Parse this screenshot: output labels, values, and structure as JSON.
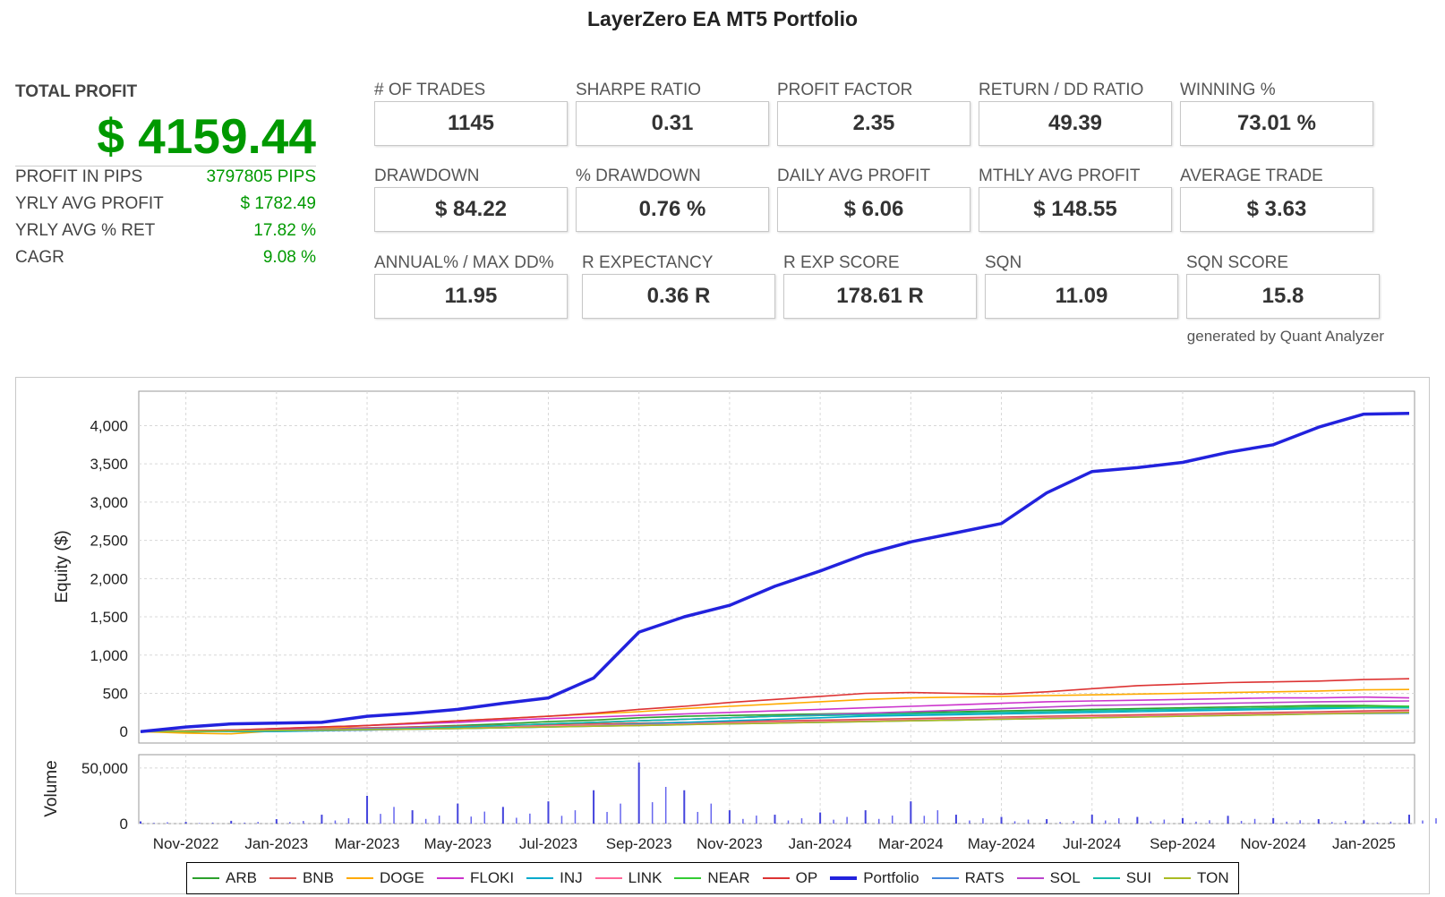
{
  "title": "LayerZero EA MT5 Portfolio",
  "total_profit": {
    "label": "TOTAL PROFIT",
    "value": "$ 4159.44"
  },
  "summary": [
    {
      "label": "PROFIT IN PIPS",
      "value": "3797805 PIPS"
    },
    {
      "label": "YRLY AVG PROFIT",
      "value": "$ 1782.49"
    },
    {
      "label": "YRLY AVG % RET",
      "value": "17.82 %"
    },
    {
      "label": "CAGR",
      "value": "9.08 %"
    }
  ],
  "stats": [
    {
      "label": "# OF TRADES",
      "value": "1145"
    },
    {
      "label": "SHARPE RATIO",
      "value": "0.31"
    },
    {
      "label": "PROFIT FACTOR",
      "value": "2.35"
    },
    {
      "label": "RETURN / DD RATIO",
      "value": "49.39"
    },
    {
      "label": "WINNING %",
      "value": "73.01 %"
    },
    {
      "label": "DRAWDOWN",
      "value": "$ 84.22"
    },
    {
      "label": "% DRAWDOWN",
      "value": "0.76 %"
    },
    {
      "label": "DAILY AVG PROFIT",
      "value": "$ 6.06"
    },
    {
      "label": "MTHLY AVG PROFIT",
      "value": "$ 148.55"
    },
    {
      "label": "AVERAGE TRADE",
      "value": "$ 3.63"
    },
    {
      "label": "ANNUAL% / MAX DD%",
      "value": "11.95"
    },
    {
      "label": "R EXPECTANCY",
      "value": "0.36 R"
    },
    {
      "label": "R EXP SCORE",
      "value": "178.61 R"
    },
    {
      "label": "SQN",
      "value": "11.09"
    },
    {
      "label": "SQN SCORE",
      "value": "15.8"
    }
  ],
  "credit": "generated by Quant Analyzer",
  "chart_data": {
    "type": "line",
    "ylabel": "Equity ($)",
    "volume_label": "Volume",
    "x_ticks": [
      "Nov-2022",
      "Jan-2023",
      "Mar-2023",
      "May-2023",
      "Jul-2023",
      "Sep-2023",
      "Nov-2023",
      "Jan-2024",
      "Mar-2024",
      "May-2024",
      "Jul-2024",
      "Sep-2024",
      "Nov-2024",
      "Jan-2025"
    ],
    "y_ticks": [
      "0",
      "500",
      "1,000",
      "1,500",
      "2,000",
      "2,500",
      "3,000",
      "3,500",
      "4,000"
    ],
    "ylim": [
      -150,
      4450
    ],
    "volume_ticks": [
      "0",
      "50,000"
    ],
    "volume_ylim": [
      0,
      62000
    ],
    "grid": true,
    "legend_position": "bottom",
    "x_months": [
      "2022-10",
      "2022-11",
      "2022-12",
      "2023-01",
      "2023-02",
      "2023-03",
      "2023-04",
      "2023-05",
      "2023-06",
      "2023-07",
      "2023-08",
      "2023-09",
      "2023-10",
      "2023-11",
      "2023-12",
      "2024-01",
      "2024-02",
      "2024-03",
      "2024-04",
      "2024-05",
      "2024-06",
      "2024-07",
      "2024-08",
      "2024-09",
      "2024-10",
      "2024-11",
      "2024-12",
      "2025-01",
      "2025-02"
    ],
    "series": [
      {
        "name": "ARB",
        "color": "#2ca02c",
        "values": [
          0,
          -10,
          10,
          20,
          30,
          40,
          60,
          80,
          100,
          130,
          150,
          180,
          200,
          210,
          220,
          230,
          240,
          250,
          260,
          270,
          280,
          290,
          300,
          310,
          320,
          330,
          340,
          340,
          330
        ]
      },
      {
        "name": "BNB",
        "color": "#d9534f",
        "values": [
          0,
          10,
          20,
          30,
          40,
          50,
          60,
          70,
          80,
          90,
          100,
          110,
          120,
          130,
          140,
          150,
          160,
          170,
          180,
          190,
          200,
          210,
          220,
          230,
          240,
          250,
          260,
          270,
          280
        ]
      },
      {
        "name": "DOGE",
        "color": "#ffaa00",
        "values": [
          0,
          -20,
          -30,
          10,
          40,
          80,
          110,
          140,
          170,
          200,
          230,
          260,
          300,
          330,
          360,
          390,
          420,
          440,
          450,
          460,
          470,
          480,
          490,
          500,
          510,
          520,
          530,
          545,
          550
        ]
      },
      {
        "name": "FLOKI",
        "color": "#cc33cc",
        "values": [
          0,
          10,
          20,
          40,
          60,
          80,
          100,
          120,
          150,
          170,
          190,
          210,
          230,
          250,
          270,
          290,
          310,
          330,
          350,
          370,
          390,
          400,
          410,
          420,
          430,
          440,
          440,
          450,
          440
        ]
      },
      {
        "name": "INJ",
        "color": "#00aacc",
        "values": [
          0,
          10,
          0,
          0,
          10,
          20,
          30,
          40,
          50,
          60,
          80,
          100,
          120,
          140,
          160,
          180,
          200,
          210,
          220,
          230,
          240,
          250,
          260,
          270,
          280,
          290,
          300,
          310,
          320
        ]
      },
      {
        "name": "LINK",
        "color": "#ff6699",
        "values": [
          0,
          0,
          10,
          10,
          20,
          30,
          40,
          50,
          60,
          70,
          80,
          90,
          100,
          110,
          120,
          130,
          140,
          150,
          160,
          170,
          180,
          190,
          200,
          210,
          220,
          230,
          240,
          250,
          260
        ]
      },
      {
        "name": "NEAR",
        "color": "#33cc33",
        "values": [
          0,
          0,
          10,
          20,
          30,
          40,
          50,
          60,
          80,
          100,
          120,
          140,
          160,
          180,
          200,
          210,
          220,
          230,
          240,
          250,
          260,
          270,
          280,
          290,
          300,
          310,
          320,
          330,
          330
        ]
      },
      {
        "name": "OP",
        "color": "#dd3333",
        "values": [
          0,
          10,
          20,
          40,
          60,
          80,
          110,
          140,
          170,
          200,
          240,
          290,
          330,
          380,
          420,
          460,
          500,
          510,
          500,
          490,
          520,
          560,
          600,
          620,
          640,
          650,
          660,
          680,
          690
        ]
      },
      {
        "name": "Portfolio",
        "color": "#2222dd",
        "values": [
          0,
          60,
          100,
          110,
          120,
          200,
          240,
          290,
          370,
          440,
          700,
          1300,
          1500,
          1650,
          1900,
          2100,
          2320,
          2480,
          2600,
          2720,
          3120,
          3400,
          3450,
          3520,
          3650,
          3750,
          3980,
          4150,
          4160
        ]
      },
      {
        "name": "RATS",
        "color": "#4488dd",
        "values": [
          0,
          0,
          5,
          10,
          15,
          20,
          30,
          40,
          50,
          60,
          70,
          80,
          90,
          100,
          110,
          120,
          130,
          140,
          150,
          160,
          170,
          180,
          190,
          200,
          210,
          220,
          230,
          235,
          240
        ]
      },
      {
        "name": "SOL",
        "color": "#bb44cc",
        "values": [
          0,
          5,
          10,
          20,
          30,
          40,
          50,
          60,
          80,
          100,
          120,
          140,
          160,
          180,
          200,
          220,
          240,
          260,
          280,
          300,
          320,
          340,
          350,
          360,
          370,
          380,
          390,
          395,
          400
        ]
      },
      {
        "name": "SUI",
        "color": "#11bbaa",
        "values": [
          0,
          0,
          5,
          10,
          20,
          30,
          40,
          60,
          80,
          100,
          120,
          140,
          160,
          180,
          200,
          210,
          220,
          230,
          240,
          250,
          260,
          270,
          280,
          290,
          300,
          300,
          310,
          310,
          310
        ]
      },
      {
        "name": "TON",
        "color": "#aabb22",
        "values": [
          0,
          5,
          10,
          15,
          20,
          25,
          30,
          40,
          50,
          60,
          70,
          80,
          90,
          100,
          110,
          120,
          130,
          140,
          150,
          160,
          170,
          180,
          190,
          200,
          210,
          220,
          230,
          240,
          250
        ]
      }
    ],
    "volume_values": [
      2000,
      1500,
      2500,
      4000,
      8000,
      25000,
      12000,
      18000,
      15000,
      20000,
      30000,
      55000,
      30000,
      12000,
      8000,
      10000,
      12000,
      20000,
      8000,
      6000,
      4000,
      8000,
      6000,
      5000,
      7000,
      5000,
      4000,
      3000,
      8000
    ]
  }
}
